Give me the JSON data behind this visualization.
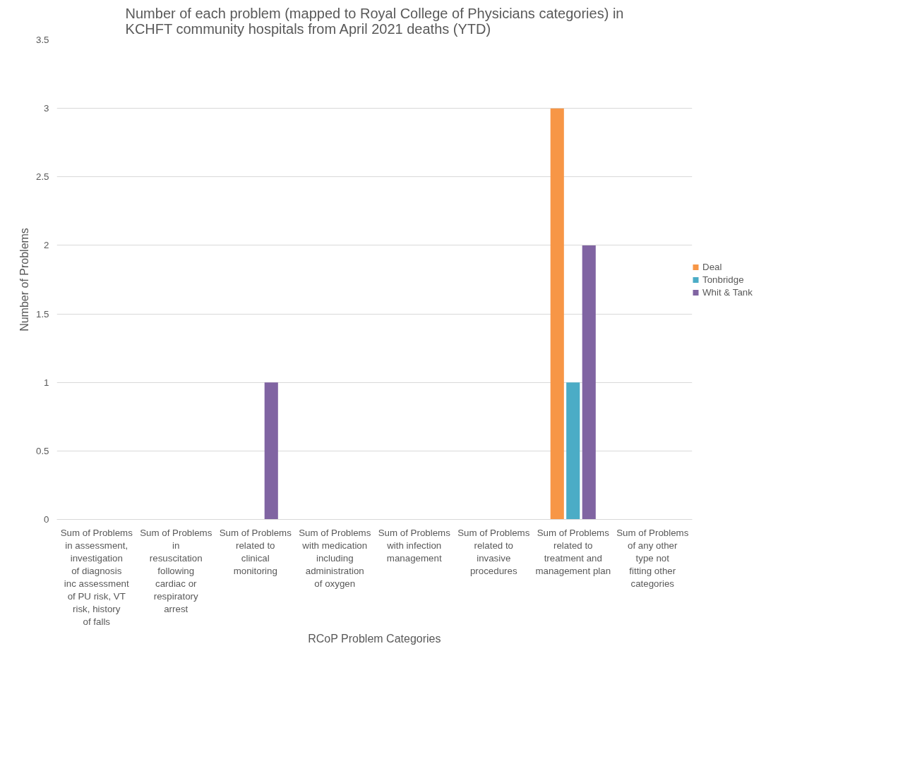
{
  "chart_data": {
    "type": "bar",
    "title": "Number of each problem (mapped to Royal College of Physicians categories) in KCHFT community hospitals from April 2021 deaths (YTD)",
    "xlabel": "RCoP Problem Categories",
    "ylabel": "Number of Problems",
    "categories": [
      "Sum of Problems in assessment, investigation of diagnosis inc assessment of PU risk, VT risk, history of falls",
      "Sum of Problems in resuscitation following cardiac or respiratory arrest",
      "Sum of Problems related to clinical monitoring",
      "Sum of Problems with medication including administration of oxygen",
      "Sum of Problems with infection management",
      "Sum of Problems related to invasive procedures",
      "Sum of Problems related to treatment and management plan",
      "Sum of Problems of any other type not fitting other categories"
    ],
    "series": [
      {
        "name": "Deal",
        "color": "#f79646",
        "values": [
          0,
          0,
          0,
          0,
          0,
          0,
          3,
          0
        ]
      },
      {
        "name": "Tonbridge",
        "color": "#4bacc6",
        "values": [
          0,
          0,
          0,
          0,
          0,
          0,
          1,
          0
        ]
      },
      {
        "name": "Whit & Tank",
        "color": "#8064a2",
        "values": [
          0,
          0,
          1,
          0,
          0,
          0,
          2,
          0
        ]
      }
    ],
    "ylim": [
      0,
      3.5
    ],
    "yticks": [
      0,
      0.5,
      1,
      1.5,
      2,
      2.5,
      3,
      3.5
    ],
    "grid": "y",
    "legend": "right"
  }
}
